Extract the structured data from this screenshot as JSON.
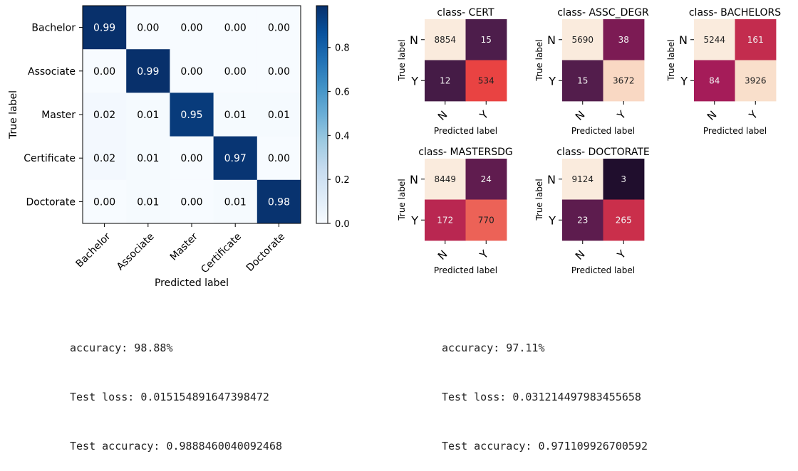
{
  "chart_data": [
    {
      "type": "heatmap",
      "title": "",
      "xlabel": "Predicted label",
      "ylabel": "True label",
      "row_labels": [
        "Bachelor",
        "Associate",
        "Master",
        "Certificate",
        "Doctorate"
      ],
      "col_labels": [
        "Bachelor",
        "Associate",
        "Master",
        "Certificate",
        "Doctorate"
      ],
      "values": [
        [
          0.99,
          0.0,
          0.0,
          0.0,
          0.0
        ],
        [
          0.0,
          0.99,
          0.0,
          0.0,
          0.0
        ],
        [
          0.02,
          0.01,
          0.95,
          0.01,
          0.01
        ],
        [
          0.02,
          0.01,
          0.0,
          0.97,
          0.0
        ],
        [
          0.0,
          0.01,
          0.0,
          0.01,
          0.98
        ]
      ],
      "colorbar": {
        "ticks": [
          "0.0",
          "0.2",
          "0.4",
          "0.6",
          "0.8"
        ],
        "range": [
          0,
          0.99
        ],
        "colormap": "Blues"
      }
    },
    {
      "type": "heatmap",
      "title": "class- CERT",
      "xlabel": "Predicted label",
      "ylabel": "True label",
      "row_labels": [
        "N",
        "Y"
      ],
      "col_labels": [
        "N",
        "Y"
      ],
      "values": [
        [
          8854,
          15
        ],
        [
          12,
          534
        ]
      ]
    },
    {
      "type": "heatmap",
      "title": "class- ASSC_DEGR",
      "xlabel": "Predicted label",
      "ylabel": "True label",
      "row_labels": [
        "N",
        "Y"
      ],
      "col_labels": [
        "N",
        "Y"
      ],
      "values": [
        [
          5690,
          38
        ],
        [
          15,
          3672
        ]
      ]
    },
    {
      "type": "heatmap",
      "title": "class- BACHELORS",
      "xlabel": "Predicted label",
      "ylabel": "True label",
      "row_labels": [
        "N",
        "Y"
      ],
      "col_labels": [
        "N",
        "Y"
      ],
      "values": [
        [
          5244,
          161
        ],
        [
          84,
          3926
        ]
      ]
    },
    {
      "type": "heatmap",
      "title": "class- MASTERSDG",
      "xlabel": "Predicted label",
      "ylabel": "True label",
      "row_labels": [
        "N",
        "Y"
      ],
      "col_labels": [
        "N",
        "Y"
      ],
      "values": [
        [
          8449,
          24
        ],
        [
          172,
          770
        ]
      ]
    },
    {
      "type": "heatmap",
      "title": "class- DOCTORATE",
      "xlabel": "Predicted label",
      "ylabel": "True label",
      "row_labels": [
        "N",
        "Y"
      ],
      "col_labels": [
        "N",
        "Y"
      ],
      "values": [
        [
          9124,
          3
        ],
        [
          23,
          265
        ]
      ]
    }
  ],
  "results_left": {
    "accuracy": "accuracy: 98.88%",
    "test_loss": "Test loss: 0.015154891647398472",
    "test_accuracy": "Test accuracy: 0.9888460040092468"
  },
  "results_right": {
    "accuracy": "accuracy: 97.11%",
    "test_loss": "Test loss: 0.031214497983455658",
    "test_accuracy": "Test accuracy: 0.971109926700592"
  },
  "colors": {
    "blues_low": "#f7fbff",
    "blues_high": "#08306b",
    "rocket_palette": [
      "#03051a",
      "#4c1d4b",
      "#a11a5b",
      "#e83f3f",
      "#f6b48f",
      "#faebdd"
    ]
  }
}
